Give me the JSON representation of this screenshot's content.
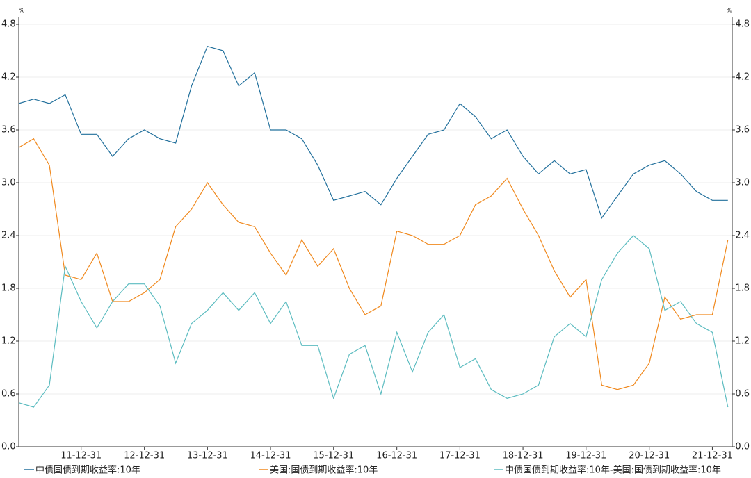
{
  "chart_data": {
    "type": "line",
    "y_unit": "%",
    "y2_unit": "%",
    "x": [
      "11-01-04",
      "11-03-31",
      "11-06-30",
      "11-09-30",
      "11-12-31",
      "12-03-31",
      "12-06-30",
      "12-09-30",
      "12-12-31",
      "13-03-31",
      "13-06-30",
      "13-09-30",
      "13-12-31",
      "14-03-31",
      "14-06-30",
      "14-09-30",
      "14-12-31",
      "15-03-31",
      "15-06-30",
      "15-09-30",
      "15-12-31",
      "16-03-31",
      "16-06-30",
      "16-09-30",
      "16-12-31",
      "17-03-31",
      "17-06-30",
      "17-09-30",
      "17-12-31",
      "18-03-31",
      "18-06-30",
      "18-09-30",
      "18-12-31",
      "19-03-31",
      "19-06-30",
      "19-09-30",
      "19-12-31",
      "20-03-31",
      "20-06-30",
      "20-09-30",
      "20-12-31",
      "21-03-31",
      "21-06-30",
      "21-09-30",
      "21-12-31",
      "22-03-31"
    ],
    "xlim": [
      "11-01-04",
      "22-04-25"
    ],
    "xticks": [
      "11-12-31",
      "12-12-31",
      "13-12-31",
      "14-12-31",
      "15-12-31",
      "16-12-31",
      "17-12-31",
      "18-12-31",
      "19-12-31",
      "20-12-31",
      "21-12-31"
    ],
    "ylim": [
      0,
      4.8
    ],
    "yticks": [
      {
        "value": 0,
        "label": "0.0"
      },
      0.6,
      1.2,
      1.8,
      2.4,
      {
        "value": 3,
        "label": "3.0"
      },
      3.6,
      4.2,
      4.8
    ],
    "y2lim": [
      0,
      4.8
    ],
    "y2ticks": [
      {
        "value": 0,
        "label": "0.0"
      },
      0.6,
      1.2,
      1.8,
      2.4,
      {
        "value": 3,
        "label": "3.0"
      },
      3.6,
      4.2,
      4.8
    ],
    "grid": true,
    "series": [
      {
        "name": "中债国债到期收益率:10年",
        "color": "#22709c",
        "values": [
          3.9,
          3.95,
          3.9,
          4.0,
          3.55,
          3.55,
          3.3,
          3.5,
          3.6,
          3.5,
          3.45,
          4.1,
          4.55,
          4.5,
          4.1,
          4.25,
          3.6,
          3.6,
          3.5,
          3.2,
          2.8,
          2.85,
          2.9,
          2.75,
          3.05,
          3.3,
          3.55,
          3.6,
          3.9,
          3.75,
          3.5,
          3.6,
          3.3,
          3.1,
          3.25,
          3.1,
          3.15,
          2.6,
          2.85,
          3.1,
          3.2,
          3.25,
          3.1,
          2.9,
          2.8,
          2.8
        ]
      },
      {
        "name": "美国:国债到期收益率:10年",
        "color": "#f0891e",
        "values": [
          3.4,
          3.5,
          3.2,
          1.95,
          1.9,
          2.2,
          1.65,
          1.65,
          1.75,
          1.9,
          2.5,
          2.7,
          3.0,
          2.75,
          2.55,
          2.5,
          2.2,
          1.95,
          2.35,
          2.05,
          2.25,
          1.8,
          1.5,
          1.6,
          2.45,
          2.4,
          2.3,
          2.3,
          2.4,
          2.75,
          2.85,
          3.05,
          2.7,
          2.4,
          2.0,
          1.7,
          1.9,
          0.7,
          0.65,
          0.7,
          0.95,
          1.7,
          1.45,
          1.5,
          1.5,
          2.35
        ]
      },
      {
        "name": "中债国债到期收益率:10年-美国:国债到期收益率:10年",
        "color": "#5cbcc0",
        "values": [
          0.5,
          0.45,
          0.7,
          2.05,
          1.65,
          1.35,
          1.65,
          1.85,
          1.85,
          1.6,
          0.95,
          1.4,
          1.55,
          1.75,
          1.55,
          1.75,
          1.4,
          1.65,
          1.15,
          1.15,
          0.55,
          1.05,
          1.15,
          0.6,
          1.3,
          0.85,
          1.3,
          1.5,
          0.9,
          1.0,
          0.65,
          0.55,
          0.6,
          0.7,
          1.25,
          1.4,
          1.25,
          1.9,
          2.2,
          2.4,
          2.25,
          1.55,
          1.65,
          1.4,
          1.3,
          0.45
        ]
      }
    ]
  }
}
